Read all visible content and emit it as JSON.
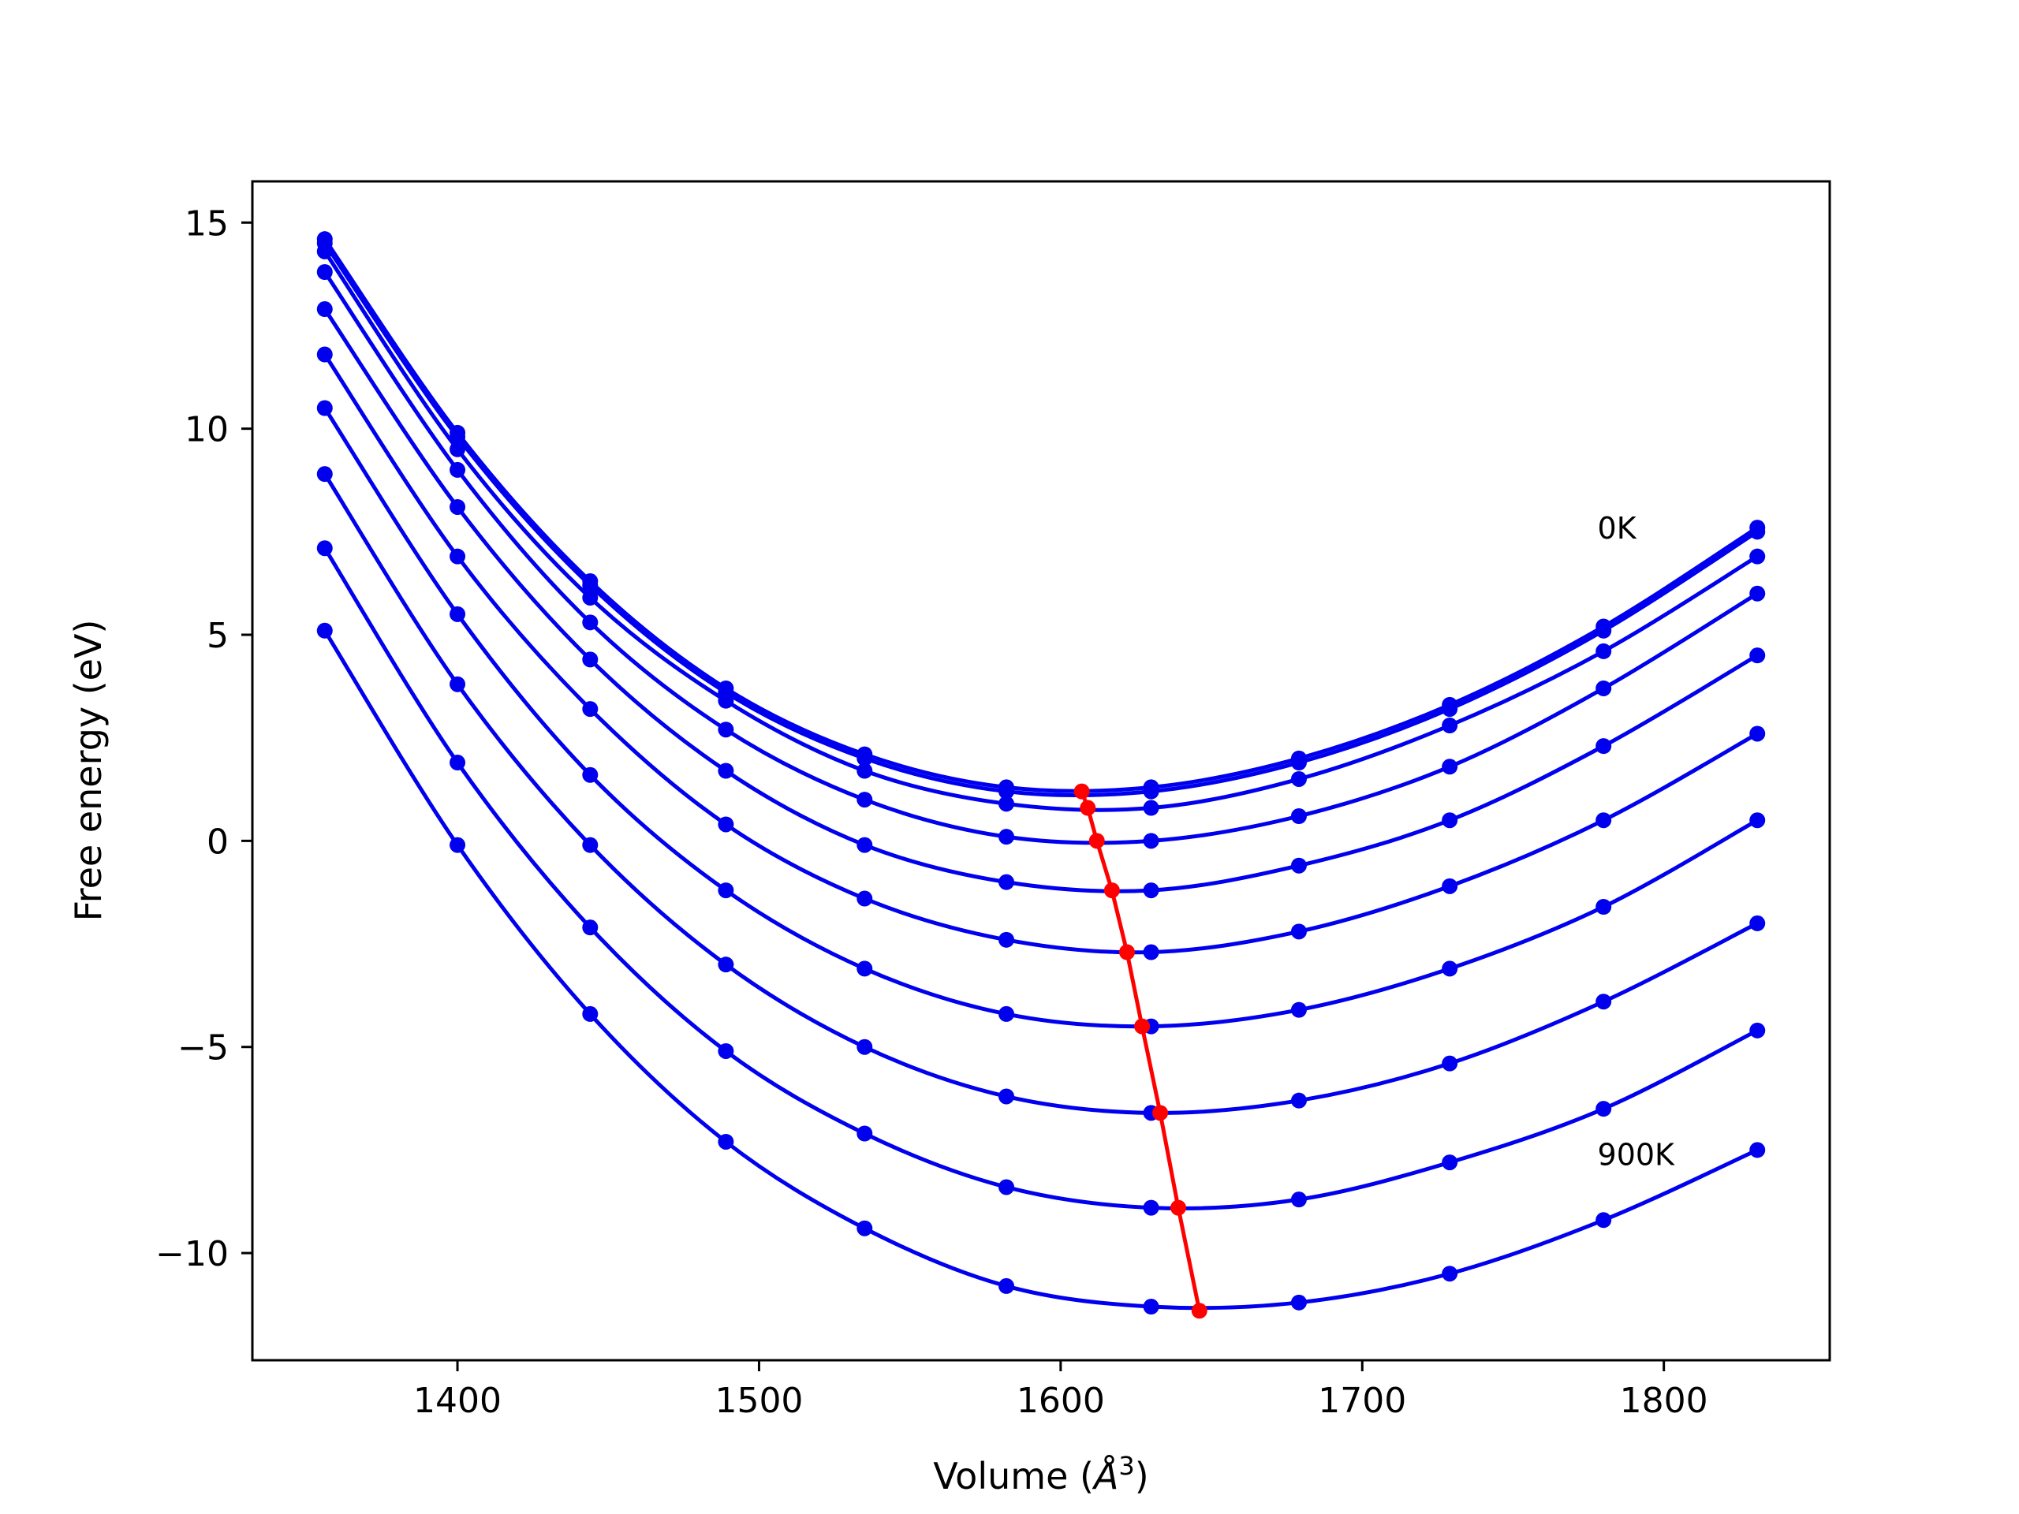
{
  "chart_data": {
    "type": "line",
    "xlabel": "Volume (",
    "xlabel_unit": "Å",
    "xlabel_exp": "3",
    "xlabel_close": ")",
    "ylabel": "Free energy (eV)",
    "xlim": [
      1332,
      1855
    ],
    "ylim": [
      -12.6,
      16.0
    ],
    "xticks": [
      1400,
      1500,
      1600,
      1700,
      1800
    ],
    "xtick_labels": [
      "1400",
      "1500",
      "1600",
      "1700",
      "1800"
    ],
    "yticks": [
      -10,
      -5,
      0,
      5,
      10,
      15
    ],
    "ytick_labels": [
      "−10",
      "−5",
      "0",
      "5",
      "10",
      "15"
    ],
    "grid": false,
    "annotations": [
      {
        "text": "0K",
        "x": 1778,
        "y": 7.6
      },
      {
        "text": "900K",
        "x": 1778,
        "y": -7.6
      }
    ],
    "x": [
      1356,
      1400,
      1444,
      1489,
      1535,
      1582,
      1630,
      1679,
      1729,
      1780,
      1831
    ],
    "series": [
      {
        "color": "#0000ee",
        "values": [
          14.6,
          9.9,
          6.3,
          3.7,
          2.1,
          1.3,
          1.3,
          2.0,
          3.3,
          5.2,
          7.6
        ]
      },
      {
        "color": "#0000ee",
        "values": [
          14.5,
          9.8,
          6.2,
          3.6,
          2.0,
          1.2,
          1.2,
          1.9,
          3.2,
          5.1,
          7.5
        ]
      },
      {
        "color": "#0000ee",
        "values": [
          14.3,
          9.5,
          5.9,
          3.4,
          1.7,
          0.9,
          0.8,
          1.5,
          2.8,
          4.6,
          6.9
        ]
      },
      {
        "color": "#0000ee",
        "values": [
          13.8,
          9.0,
          5.3,
          2.7,
          1.0,
          0.1,
          0.0,
          0.6,
          1.8,
          3.7,
          6.0
        ]
      },
      {
        "color": "#0000ee",
        "values": [
          12.9,
          8.1,
          4.4,
          1.7,
          -0.1,
          -1.0,
          -1.2,
          -0.6,
          0.5,
          2.3,
          4.5
        ]
      },
      {
        "color": "#0000ee",
        "values": [
          11.8,
          6.9,
          3.2,
          0.4,
          -1.4,
          -2.4,
          -2.7,
          -2.2,
          -1.1,
          0.5,
          2.6
        ]
      },
      {
        "color": "#0000ee",
        "values": [
          10.5,
          5.5,
          1.6,
          -1.2,
          -3.1,
          -4.2,
          -4.5,
          -4.1,
          -3.1,
          -1.6,
          0.5
        ]
      },
      {
        "color": "#0000ee",
        "values": [
          8.9,
          3.8,
          -0.1,
          -3.0,
          -5.0,
          -6.2,
          -6.6,
          -6.3,
          -5.4,
          -3.9,
          -2.0
        ]
      },
      {
        "color": "#0000ee",
        "values": [
          7.1,
          1.9,
          -2.1,
          -5.1,
          -7.1,
          -8.4,
          -8.9,
          -8.7,
          -7.8,
          -6.5,
          -4.6
        ]
      },
      {
        "color": "#0000ee",
        "values": [
          5.1,
          -0.1,
          -4.2,
          -7.3,
          -9.4,
          -10.8,
          -11.3,
          -11.2,
          -10.5,
          -9.2,
          -7.5
        ]
      }
    ],
    "minimum_line": {
      "color": "#ff0000",
      "x": [
        1607,
        1609,
        1612,
        1617,
        1622,
        1627,
        1633,
        1639,
        1646
      ],
      "values": [
        1.2,
        0.8,
        0.0,
        -1.2,
        -2.7,
        -4.5,
        -6.6,
        -8.9,
        -11.4
      ]
    }
  }
}
